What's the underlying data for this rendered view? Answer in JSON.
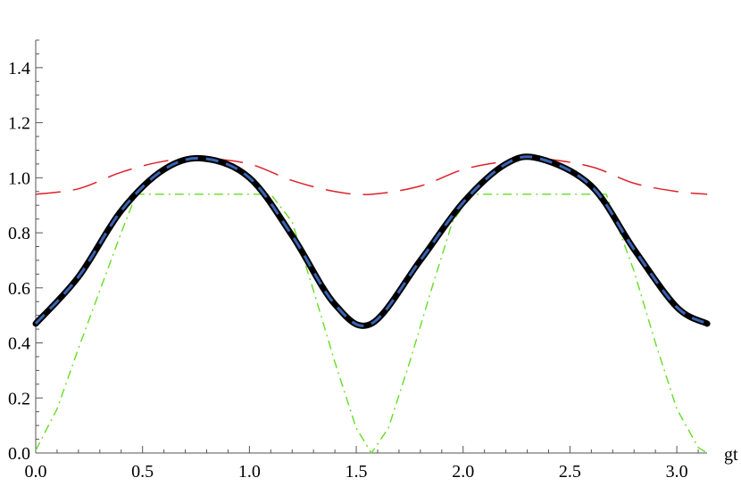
{
  "chart_data": {
    "type": "line",
    "xlabel": "gt",
    "ylabel": "",
    "xlim": [
      0,
      3.1416
    ],
    "ylim": [
      0,
      1.5
    ],
    "x_ticks": [
      "0.0",
      "0.5",
      "1.0",
      "1.5",
      "2.0",
      "2.5",
      "3.0"
    ],
    "y_ticks": [
      "0.0",
      "0.2",
      "0.4",
      "0.6",
      "0.8",
      "1.0",
      "1.2",
      "1.4"
    ],
    "grid": false,
    "legend": "none",
    "series": [
      {
        "style": "solid-thick",
        "color": "#000000",
        "x": [
          0.0,
          0.2,
          0.4,
          0.6,
          0.785,
          1.0,
          1.2,
          1.4,
          1.571,
          1.8,
          2.0,
          2.2,
          2.356,
          2.6,
          2.8,
          3.0,
          3.142
        ],
        "y": [
          0.47,
          0.64,
          0.88,
          1.03,
          1.07,
          1.0,
          0.79,
          0.54,
          0.47,
          0.7,
          0.91,
          1.05,
          1.07,
          0.97,
          0.74,
          0.53,
          0.47
        ]
      },
      {
        "style": "dashed",
        "color": "#3a64b4",
        "x": [
          0.0,
          0.2,
          0.4,
          0.6,
          0.785,
          1.0,
          1.2,
          1.4,
          1.571,
          1.8,
          2.0,
          2.2,
          2.356,
          2.6,
          2.8,
          3.0,
          3.142
        ],
        "y": [
          0.47,
          0.64,
          0.88,
          1.03,
          1.07,
          1.0,
          0.79,
          0.54,
          0.47,
          0.7,
          0.91,
          1.05,
          1.07,
          0.97,
          0.74,
          0.53,
          0.47
        ]
      },
      {
        "style": "long-dash",
        "color": "#e0202a",
        "x": [
          0.0,
          0.2,
          0.4,
          0.6,
          0.785,
          1.0,
          1.2,
          1.4,
          1.571,
          1.8,
          2.0,
          2.2,
          2.356,
          2.6,
          2.8,
          3.0,
          3.142
        ],
        "y": [
          0.94,
          0.96,
          1.02,
          1.06,
          1.07,
          1.05,
          0.99,
          0.95,
          0.94,
          0.97,
          1.03,
          1.06,
          1.07,
          1.04,
          0.98,
          0.95,
          0.94
        ]
      },
      {
        "style": "dash-dot",
        "color": "#66dd22",
        "x": [
          0.0,
          0.1,
          0.2,
          0.3,
          0.4,
          0.47,
          0.6,
          0.8,
          1.0,
          1.1,
          1.2,
          1.3,
          1.4,
          1.5,
          1.571,
          1.65,
          1.75,
          1.85,
          1.95,
          2.04,
          2.2,
          2.4,
          2.6,
          2.67,
          2.8,
          2.9,
          3.0,
          3.1,
          3.142
        ],
        "y": [
          0.01,
          0.16,
          0.38,
          0.59,
          0.8,
          0.94,
          0.94,
          0.94,
          0.94,
          0.94,
          0.84,
          0.59,
          0.33,
          0.09,
          0.0,
          0.09,
          0.33,
          0.59,
          0.84,
          0.94,
          0.94,
          0.94,
          0.94,
          0.94,
          0.66,
          0.4,
          0.16,
          0.02,
          0.0
        ]
      }
    ]
  }
}
